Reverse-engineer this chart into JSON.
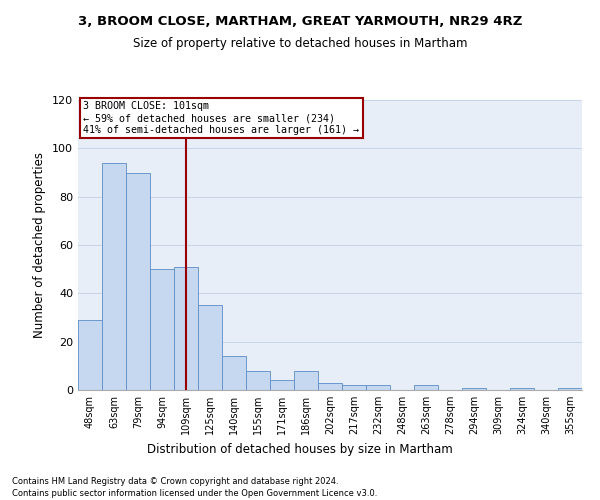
{
  "title1": "3, BROOM CLOSE, MARTHAM, GREAT YARMOUTH, NR29 4RZ",
  "title2": "Size of property relative to detached houses in Martham",
  "xlabel": "Distribution of detached houses by size in Martham",
  "ylabel": "Number of detached properties",
  "categories": [
    "48sqm",
    "63sqm",
    "79sqm",
    "94sqm",
    "109sqm",
    "125sqm",
    "140sqm",
    "155sqm",
    "171sqm",
    "186sqm",
    "202sqm",
    "217sqm",
    "232sqm",
    "248sqm",
    "263sqm",
    "278sqm",
    "294sqm",
    "309sqm",
    "324sqm",
    "340sqm",
    "355sqm"
  ],
  "values": [
    29,
    94,
    90,
    50,
    51,
    35,
    14,
    8,
    4,
    8,
    3,
    2,
    2,
    0,
    2,
    0,
    1,
    0,
    1,
    0,
    1
  ],
  "bar_color": "#c5d8f0",
  "bar_edge_color": "#5b8dc8",
  "vline_x": 4.0,
  "vline_color": "#990000",
  "annotation_line1": "3 BROOM CLOSE: 101sqm",
  "annotation_line2": "← 59% of detached houses are smaller (234)",
  "annotation_line3": "41% of semi-detached houses are larger (161) →",
  "annotation_box_color": "#ffffff",
  "annotation_box_edge_color": "#990000",
  "ylim": [
    0,
    120
  ],
  "yticks": [
    0,
    20,
    40,
    60,
    80,
    100,
    120
  ],
  "grid_color": "#c8d4e8",
  "bg_color": "#e8eef8",
  "footer1": "Contains HM Land Registry data © Crown copyright and database right 2024.",
  "footer2": "Contains public sector information licensed under the Open Government Licence v3.0."
}
